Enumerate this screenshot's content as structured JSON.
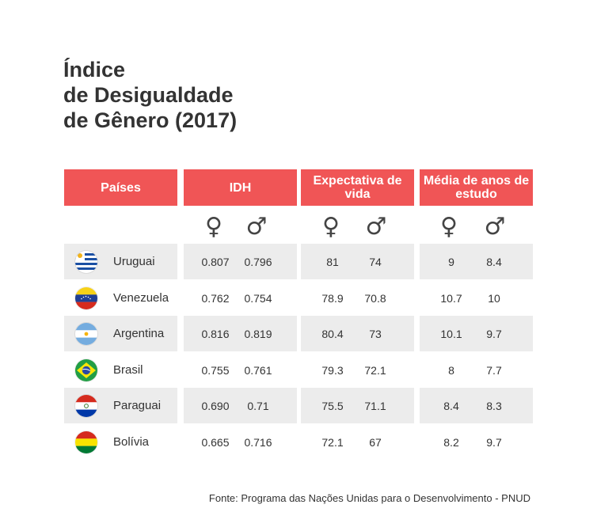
{
  "title": {
    "line1": "Índice",
    "line2": "de Desigualdade",
    "line3": "de Gênero (2017)"
  },
  "headers": {
    "countries": "Países",
    "hdi": "IDH",
    "life": "Expectativa de vida",
    "schooling": "Média de anos de estudo"
  },
  "symbols": {
    "female": "♀",
    "male": "♂",
    "female_icon": "female-symbol-icon",
    "male_icon": "male-symbol-icon"
  },
  "colors": {
    "header_bg": "#f05556",
    "row_shade": "#ececec"
  },
  "rows": [
    {
      "country": "Uruguai",
      "flag": "uruguay-flag-icon",
      "idh_f": "0.807",
      "idh_m": "0.796",
      "life_f": "81",
      "life_m": "74",
      "school_f": "9",
      "school_m": "8.4"
    },
    {
      "country": "Venezuela",
      "flag": "venezuela-flag-icon",
      "idh_f": "0.762",
      "idh_m": "0.754",
      "life_f": "78.9",
      "life_m": "70.8",
      "school_f": "10.7",
      "school_m": "10"
    },
    {
      "country": "Argentina",
      "flag": "argentina-flag-icon",
      "idh_f": "0.816",
      "idh_m": "0.819",
      "life_f": "80.4",
      "life_m": "73",
      "school_f": "10.1",
      "school_m": "9.7"
    },
    {
      "country": "Brasil",
      "flag": "brazil-flag-icon",
      "idh_f": "0.755",
      "idh_m": "0.761",
      "life_f": "79.3",
      "life_m": "72.1",
      "school_f": "8",
      "school_m": "7.7"
    },
    {
      "country": "Paraguai",
      "flag": "paraguay-flag-icon",
      "idh_f": "0.690",
      "idh_m": "0.71",
      "life_f": "75.5",
      "life_m": "71.1",
      "school_f": "8.4",
      "school_m": "8.3"
    },
    {
      "country": "Bolívia",
      "flag": "bolivia-flag-icon",
      "idh_f": "0.665",
      "idh_m": "0.716",
      "life_f": "72.1",
      "life_m": "67",
      "school_f": "8.2",
      "school_m": "9.7"
    }
  ],
  "source": "Fonte: Programa das Nações Unidas para o Desenvolvimento - PNUD"
}
